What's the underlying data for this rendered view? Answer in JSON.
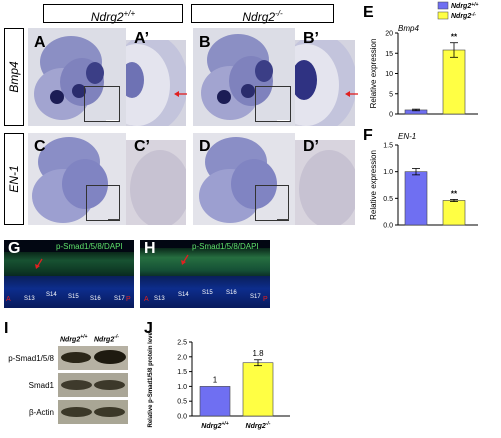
{
  "headers": {
    "wt": {
      "base": "Ndrg2",
      "sup": "+/+"
    },
    "ko": {
      "base": "Ndrg2",
      "sup": "-/-"
    }
  },
  "row_labels": {
    "bmp4": "Bmp4",
    "en1": "EN-1"
  },
  "panel_letters": {
    "A": "A",
    "A_prime": "A’",
    "B": "B",
    "B_prime": "B’",
    "C": "C",
    "C_prime": "C’",
    "D": "D",
    "D_prime": "D’",
    "E": "E",
    "F": "F",
    "G": "G",
    "H": "H",
    "I": "I",
    "J": "J"
  },
  "fluor": {
    "G": {
      "stain_label": "p-Smad1/5/8/DAPI",
      "somites": [
        "S13",
        "S14",
        "S15",
        "S16",
        "S17"
      ],
      "anterior": "A",
      "posterior": "P"
    },
    "H": {
      "stain_label": "p-Smad1/5/8/DAPI",
      "somites": [
        "S13",
        "S14",
        "S15",
        "S16",
        "S17"
      ],
      "anterior": "A",
      "posterior": "P"
    }
  },
  "western": {
    "col_wt": {
      "base": "Ndrg2",
      "sup": "+/+"
    },
    "col_ko": {
      "base": "Ndrg2",
      "sup": "-/-"
    },
    "rows": [
      "p-Smad1/5/8",
      "Smad1",
      "β-Actin"
    ]
  },
  "colors": {
    "wt_bar": "#6f6ff2",
    "ko_bar": "#ffff44",
    "arrow": "#e02020"
  },
  "chart_data": [
    {
      "type": "bar",
      "title": "Bmp4",
      "ylabel": "Relative expression",
      "categories": [
        "Ndrg2+/+",
        "Ndrg2-/-"
      ],
      "values": [
        1.0,
        15.8
      ],
      "errors": [
        0.2,
        1.8
      ],
      "ylim": [
        0,
        20
      ],
      "yticks": [
        "0",
        "5",
        "10",
        "15",
        "20"
      ],
      "significance": "**",
      "legend": [
        {
          "label": "Ndrg2+/+",
          "sup": "+/+"
        },
        {
          "label": "Ndrg2-/-",
          "sup": "-/-"
        }
      ],
      "legend_base": "Ndrg2",
      "legend_position": "top-right"
    },
    {
      "type": "bar",
      "title": "EN-1",
      "ylabel": "Relative expression",
      "categories": [
        "Ndrg2+/+",
        "Ndrg2-/-"
      ],
      "values": [
        1.0,
        0.46
      ],
      "errors": [
        0.06,
        0.02
      ],
      "ylim": [
        0,
        1.5
      ],
      "yticks": [
        "0.0",
        "0.5",
        "1.0",
        "1.5"
      ],
      "significance": "**"
    },
    {
      "type": "bar",
      "title": "",
      "ylabel": "Relative p-Smad1/5/8 protein level",
      "categories": [
        "Ndrg2+/+",
        "Ndrg2-/-"
      ],
      "x_base": "Ndrg2",
      "x_sups": [
        "+/+",
        "-/-"
      ],
      "values": [
        1.0,
        1.8
      ],
      "errors": [
        0,
        0.1
      ],
      "value_labels": [
        "1",
        "1.8"
      ],
      "ylim": [
        0,
        2.5
      ],
      "yticks": [
        "0.0",
        "0.5",
        "1.0",
        "1.5",
        "2.0",
        "2.5"
      ]
    }
  ]
}
